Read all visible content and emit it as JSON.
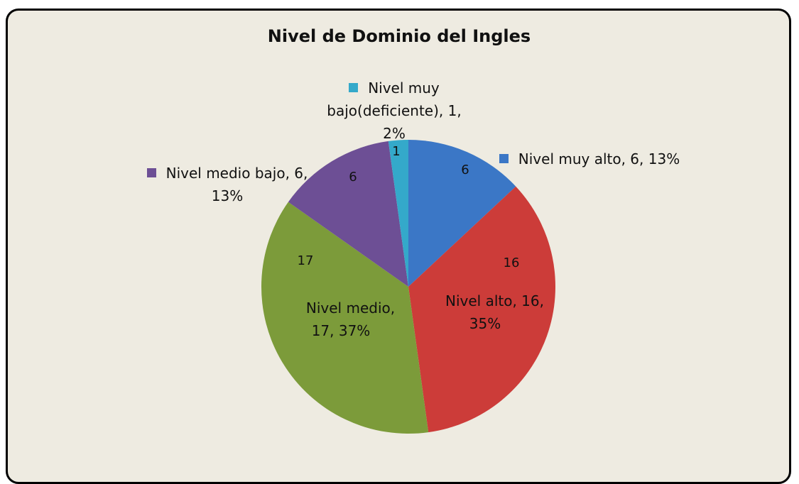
{
  "chart_data": {
    "type": "pie",
    "title": "Nivel de Dominio del Ingles",
    "labels": [
      "Nivel muy alto, 6, 13%",
      "Nivel alto, 16, 35%",
      "Nivel medio, 17, 37%",
      "Nivel medio bajo, 6, 13%",
      "Nivel muy bajo(deficiente), 1, 2%"
    ],
    "values": [
      6,
      16,
      17,
      6,
      1
    ],
    "colors": [
      "#3b77c6",
      "#cc3c39",
      "#7c9b3a",
      "#6d4f95",
      "#34a9ca"
    ]
  }
}
